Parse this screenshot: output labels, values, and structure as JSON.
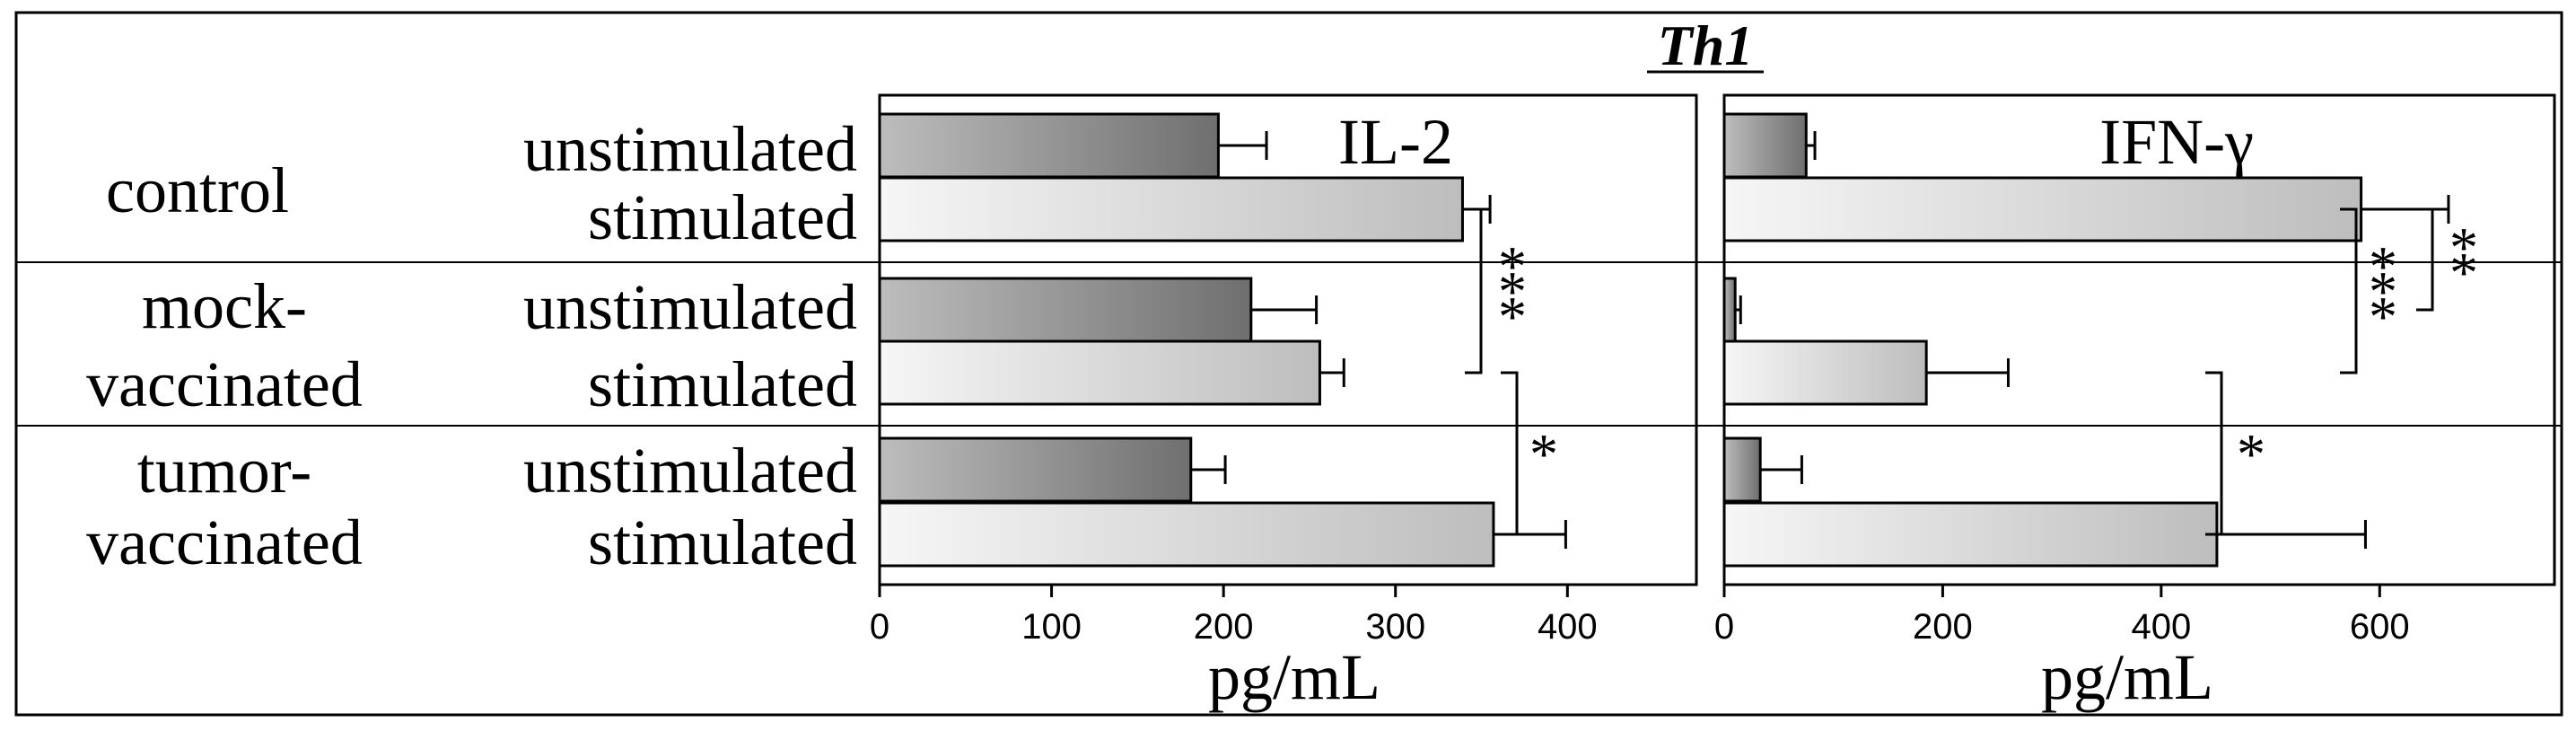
{
  "title": "Th1",
  "groups": [
    {
      "label_lines": [
        "control"
      ]
    },
    {
      "label_lines": [
        "mock-",
        "vaccinated"
      ]
    },
    {
      "label_lines": [
        "tumor-",
        "vaccinated"
      ]
    }
  ],
  "conditions": [
    "unstimulated",
    "stimulated"
  ],
  "chart_data": [
    {
      "type": "bar",
      "orientation": "horizontal",
      "title": "IL-2",
      "xlabel": "pg/mL",
      "xlim": [
        0,
        475
      ],
      "xticks": [
        0,
        100,
        200,
        300,
        400
      ],
      "grid": false,
      "categories": [
        "control unstimulated",
        "control stimulated",
        "mock-vaccinated unstimulated",
        "mock-vaccinated stimulated",
        "tumor-vaccinated unstimulated",
        "tumor-vaccinated stimulated"
      ],
      "values": [
        197,
        339,
        216,
        256,
        181,
        357
      ],
      "errors": [
        28,
        16,
        38,
        14,
        20,
        42
      ],
      "significance": [
        {
          "between": [
            1,
            3
          ],
          "label": "***"
        },
        {
          "between": [
            3,
            5
          ],
          "label": "*"
        }
      ]
    },
    {
      "type": "bar",
      "orientation": "horizontal",
      "title": "IFN-γ",
      "xlabel": "pg/mL",
      "xlim": [
        0,
        760
      ],
      "xticks": [
        0,
        200,
        400,
        600
      ],
      "grid": false,
      "categories": [
        "control unstimulated",
        "control stimulated",
        "mock-vaccinated unstimulated",
        "mock-vaccinated stimulated",
        "tumor-vaccinated unstimulated",
        "tumor-vaccinated stimulated"
      ],
      "values": [
        75,
        583,
        10,
        185,
        33,
        451
      ],
      "errors": [
        8,
        80,
        5,
        75,
        38,
        136
      ],
      "significance": [
        {
          "between": [
            1,
            3
          ],
          "label": "***"
        },
        {
          "between": [
            1,
            2
          ],
          "label": "**"
        },
        {
          "between": [
            3,
            5
          ],
          "label": "*"
        }
      ]
    }
  ]
}
